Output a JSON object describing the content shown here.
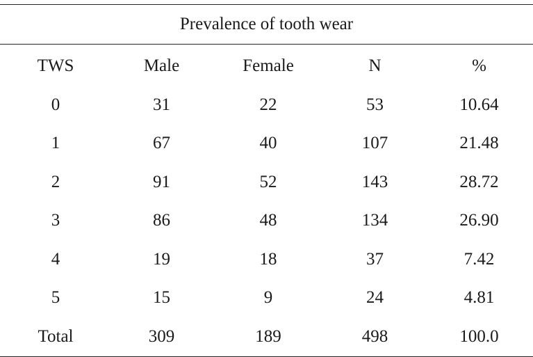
{
  "table": {
    "title": "Prevalence of tooth wear",
    "headers": [
      "TWS",
      "Male",
      "Female",
      "N",
      "%"
    ],
    "rows": [
      [
        "0",
        "31",
        "22",
        "53",
        "10.64"
      ],
      [
        "1",
        "67",
        "40",
        "107",
        "21.48"
      ],
      [
        "2",
        "91",
        "52",
        "143",
        "28.72"
      ],
      [
        "3",
        "86",
        "48",
        "134",
        "26.90"
      ],
      [
        "4",
        "19",
        "18",
        "37",
        "7.42"
      ],
      [
        "5",
        "15",
        "9",
        "24",
        "4.81"
      ],
      [
        "Total",
        "309",
        "189",
        "498",
        "100.0"
      ]
    ]
  }
}
